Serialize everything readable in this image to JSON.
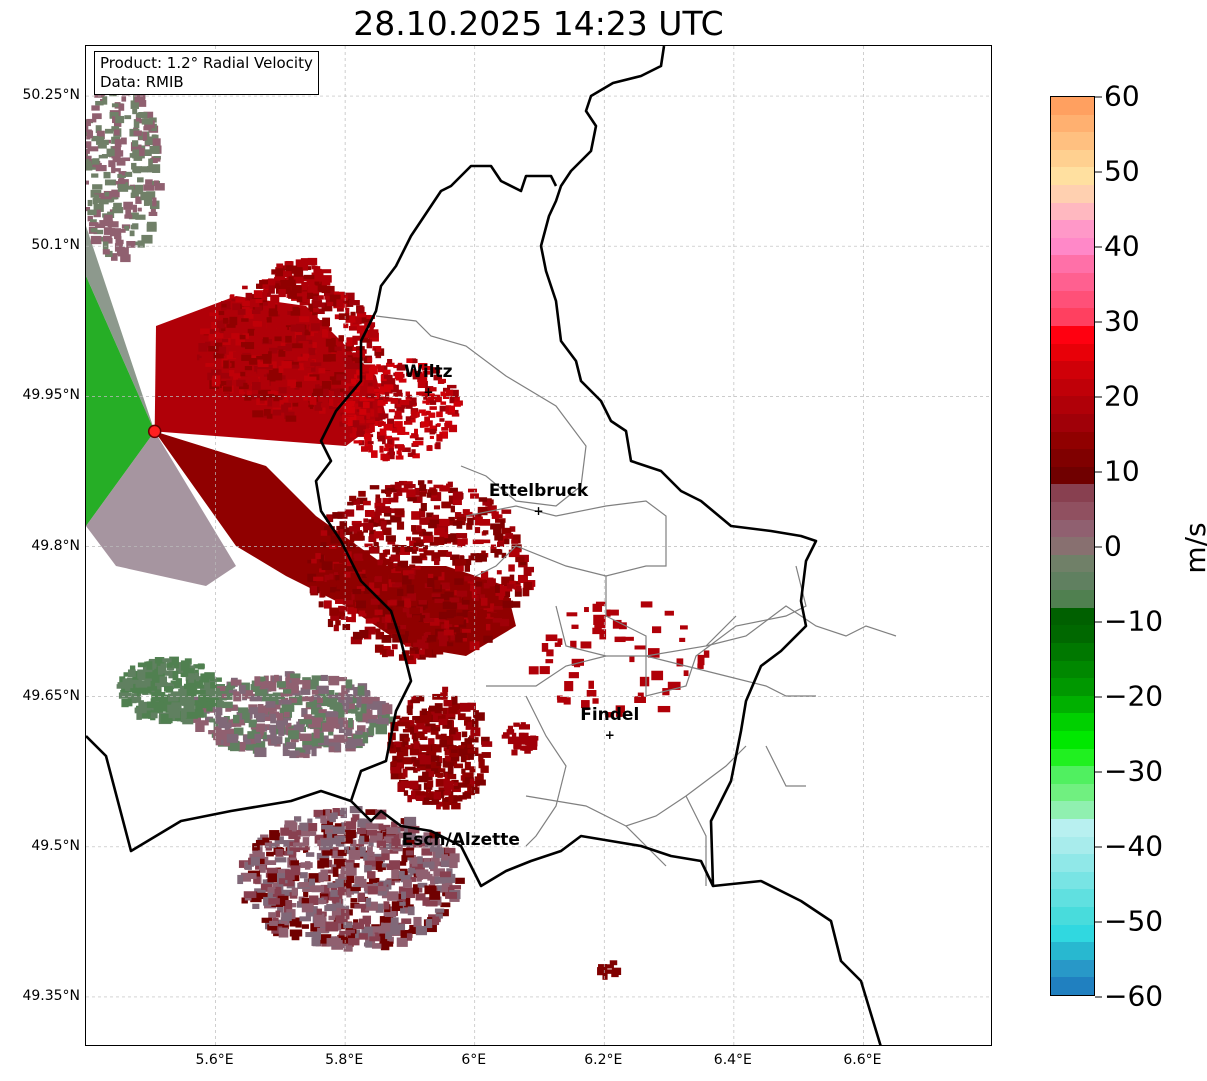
{
  "title": "28.10.2025 14:23 UTC",
  "info": {
    "product": "Product: 1.2° Radial Velocity",
    "data": "Data: RMIB"
  },
  "axes": {
    "lat_ticks": [
      {
        "v": 50.25,
        "label": "50.25°N"
      },
      {
        "v": 50.1,
        "label": "50.1°N"
      },
      {
        "v": 49.95,
        "label": "49.95°N"
      },
      {
        "v": 49.8,
        "label": "49.8°N"
      },
      {
        "v": 49.65,
        "label": "49.65°N"
      },
      {
        "v": 49.5,
        "label": "49.5°N"
      },
      {
        "v": 49.35,
        "label": "49.35°N"
      }
    ],
    "lon_ticks": [
      {
        "v": 5.6,
        "label": "5.6°E"
      },
      {
        "v": 5.8,
        "label": "5.8°E"
      },
      {
        "v": 6.0,
        "label": "6°E"
      },
      {
        "v": 6.2,
        "label": "6.2°E"
      },
      {
        "v": 6.4,
        "label": "6.4°E"
      },
      {
        "v": 6.6,
        "label": "6.6°E"
      }
    ],
    "lon_range": [
      5.4,
      6.8
    ],
    "lat_range": [
      49.3,
      50.3
    ]
  },
  "cities": [
    {
      "name": "Wiltz",
      "lon": 5.93,
      "lat": 49.967
    },
    {
      "name": "Ettelbruck",
      "lon": 6.1,
      "lat": 49.848
    },
    {
      "name": "Findel",
      "lon": 6.21,
      "lat": 49.625
    },
    {
      "name": "Esch/Alzette",
      "lon": 5.98,
      "lat": 49.5
    }
  ],
  "radar": {
    "lon": 5.506,
    "lat": 49.915,
    "color": "#ff2020"
  },
  "colorbar": {
    "label": "m/s",
    "min": -60,
    "max": 60,
    "ticks": [
      {
        "v": 60,
        "label": "60"
      },
      {
        "v": 50,
        "label": "50"
      },
      {
        "v": 40,
        "label": "40"
      },
      {
        "v": 30,
        "label": "30"
      },
      {
        "v": 20,
        "label": "20"
      },
      {
        "v": 10,
        "label": "10"
      },
      {
        "v": 0,
        "label": "0"
      },
      {
        "v": -10,
        "label": "−10"
      },
      {
        "v": -20,
        "label": "−20"
      },
      {
        "v": -30,
        "label": "−30"
      },
      {
        "v": -40,
        "label": "−40"
      },
      {
        "v": -50,
        "label": "−50"
      },
      {
        "v": -60,
        "label": "−60"
      }
    ],
    "colors": [
      "#ffa060",
      "#ffb070",
      "#ffc080",
      "#ffd090",
      "#ffe0a0",
      "#ffd0b0",
      "#ffb8c0",
      "#ff98c8",
      "#ff88c8",
      "#ff70a8",
      "#ff6090",
      "#ff5078",
      "#ff4060",
      "#ff0010",
      "#e80008",
      "#d00008",
      "#c00008",
      "#b00008",
      "#a00008",
      "#900000",
      "#800000",
      "#700000",
      "#884050",
      "#905060",
      "#906070",
      "#887070",
      "#708068",
      "#608060",
      "#508050",
      "#006000",
      "#006800",
      "#007800",
      "#008800",
      "#009800",
      "#00b000",
      "#00d000",
      "#00e800",
      "#20f020",
      "#50f060",
      "#70f080",
      "#90f0b0",
      "#b8f0f0",
      "#a8ecec",
      "#90e8e8",
      "#78e4e4",
      "#60e0e0",
      "#48dcdc",
      "#30d8e0",
      "#28b8d0",
      "#2898c8",
      "#2080c0"
    ]
  }
}
